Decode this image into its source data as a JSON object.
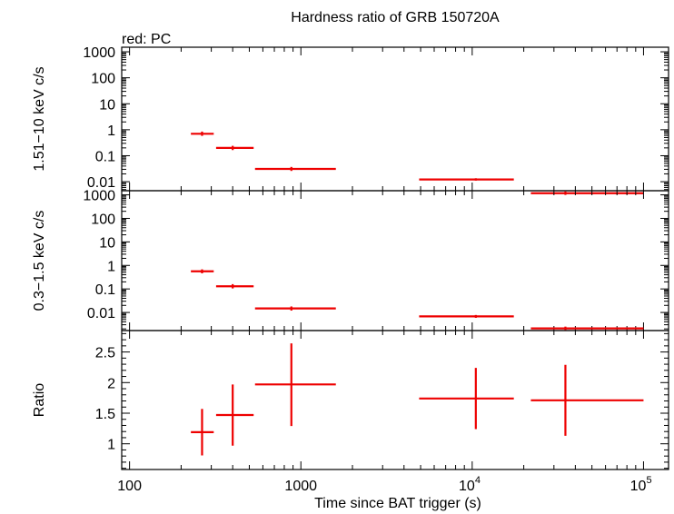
{
  "chart_data": {
    "type": "scatter",
    "title": "Hardness ratio of GRB 150720A",
    "subtitle": "red: PC",
    "xlabel": "Time since BAT trigger (s)",
    "x_scale": "log",
    "xlim": [
      90,
      140000
    ],
    "x_ticks": [
      {
        "value": 100,
        "label": "100"
      },
      {
        "value": 1000,
        "label": "1000"
      },
      {
        "value": 10000,
        "base": "10",
        "exp": "4"
      },
      {
        "value": 100000,
        "base": "10",
        "exp": "5"
      }
    ],
    "series_color": "#ee0000",
    "panels": [
      {
        "name": "hard",
        "ylabel": "1.51−10 keV c/s",
        "y_scale": "log",
        "ylim": [
          0.0045,
          1500
        ],
        "y_ticks": [
          {
            "value": 1000,
            "label": "1000"
          },
          {
            "value": 100,
            "label": "100"
          },
          {
            "value": 10,
            "label": "10"
          },
          {
            "value": 1,
            "label": "1"
          },
          {
            "value": 0.1,
            "label": "0.1"
          },
          {
            "value": 0.01,
            "label": "0.01"
          }
        ],
        "points": [
          {
            "x": 265,
            "x_lo": 228,
            "x_hi": 310,
            "y": 0.7,
            "y_lo": 0.58,
            "y_hi": 0.85
          },
          {
            "x": 400,
            "x_lo": 320,
            "x_hi": 530,
            "y": 0.2,
            "y_lo": 0.165,
            "y_hi": 0.24
          },
          {
            "x": 880,
            "x_lo": 540,
            "x_hi": 1600,
            "y": 0.031,
            "y_lo": 0.026,
            "y_hi": 0.037
          },
          {
            "x": 10500,
            "x_lo": 4900,
            "x_hi": 17500,
            "y": 0.0122,
            "y_lo": 0.011,
            "y_hi": 0.0136
          },
          {
            "x": 35000,
            "x_lo": 22000,
            "x_hi": 100000,
            "y": 0.0036,
            "y_lo": 0.0031,
            "y_hi": 0.0042
          }
        ]
      },
      {
        "name": "soft",
        "ylabel": "0.3−1.5 keV c/s",
        "y_scale": "log",
        "ylim": [
          0.0017,
          1500
        ],
        "y_ticks": [
          {
            "value": 1000,
            "label": "1000"
          },
          {
            "value": 100,
            "label": "100"
          },
          {
            "value": 10,
            "label": "10"
          },
          {
            "value": 1,
            "label": "1"
          },
          {
            "value": 0.1,
            "label": "0.1"
          },
          {
            "value": 0.01,
            "label": "0.01"
          }
        ],
        "points": [
          {
            "x": 265,
            "x_lo": 228,
            "x_hi": 310,
            "y": 0.56,
            "y_lo": 0.46,
            "y_hi": 0.68
          },
          {
            "x": 400,
            "x_lo": 320,
            "x_hi": 530,
            "y": 0.13,
            "y_lo": 0.105,
            "y_hi": 0.16
          },
          {
            "x": 880,
            "x_lo": 540,
            "x_hi": 1600,
            "y": 0.0148,
            "y_lo": 0.012,
            "y_hi": 0.018
          },
          {
            "x": 10500,
            "x_lo": 4900,
            "x_hi": 17500,
            "y": 0.0068,
            "y_lo": 0.0059,
            "y_hi": 0.0078
          },
          {
            "x": 35000,
            "x_lo": 22000,
            "x_hi": 100000,
            "y": 0.0021,
            "y_lo": 0.0018,
            "y_hi": 0.0025
          }
        ]
      },
      {
        "name": "ratio",
        "ylabel": "Ratio",
        "y_scale": "linear",
        "ylim": [
          0.58,
          2.85
        ],
        "y_ticks": [
          {
            "value": 2.5,
            "label": "2.5"
          },
          {
            "value": 2,
            "label": "2"
          },
          {
            "value": 1.5,
            "label": "1.5"
          },
          {
            "value": 1,
            "label": "1"
          }
        ],
        "y_minor": [
          0.6,
          0.7,
          0.8,
          0.9,
          1.1,
          1.2,
          1.3,
          1.4,
          1.6,
          1.7,
          1.8,
          1.9,
          2.1,
          2.2,
          2.3,
          2.4,
          2.6,
          2.7,
          2.8
        ],
        "points": [
          {
            "x": 265,
            "x_lo": 228,
            "x_hi": 310,
            "y": 1.19,
            "y_lo": 0.81,
            "y_hi": 1.57
          },
          {
            "x": 400,
            "x_lo": 320,
            "x_hi": 530,
            "y": 1.47,
            "y_lo": 0.97,
            "y_hi": 1.97
          },
          {
            "x": 880,
            "x_lo": 540,
            "x_hi": 1600,
            "y": 1.97,
            "y_lo": 1.29,
            "y_hi": 2.64
          },
          {
            "x": 10500,
            "x_lo": 4900,
            "x_hi": 17500,
            "y": 1.74,
            "y_lo": 1.24,
            "y_hi": 2.24
          },
          {
            "x": 35000,
            "x_lo": 22000,
            "x_hi": 100000,
            "y": 1.71,
            "y_lo": 1.13,
            "y_hi": 2.29
          }
        ]
      }
    ]
  }
}
